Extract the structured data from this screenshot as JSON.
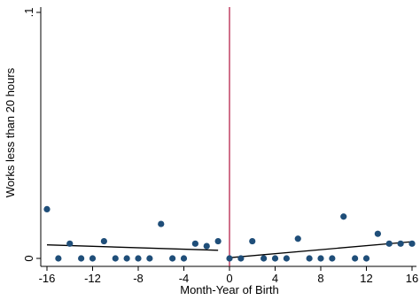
{
  "chart_data": {
    "type": "scatter",
    "title": "",
    "xlabel": "Month-Year of Birth",
    "ylabel": "Works less than 20 hours",
    "xlim": [
      -16,
      16
    ],
    "ylim": [
      0,
      0.1
    ],
    "xticks": [
      -16,
      -12,
      -8,
      -4,
      0,
      4,
      8,
      12,
      16
    ],
    "xtick_labels": [
      "-16",
      "-12",
      "-8",
      "-4",
      "0",
      "4",
      "8",
      "12",
      "16"
    ],
    "yticks": [
      0,
      0.1
    ],
    "ytick_labels": [
      "0",
      ".1"
    ],
    "grid": false,
    "legend": "none",
    "cutoff_x": 0,
    "colors": {
      "points": "#1f4e79",
      "fit": "#000000",
      "cutoff": "#b0123e",
      "axis": "#000000"
    },
    "points": [
      {
        "x": -16,
        "y": 0.02
      },
      {
        "x": -15,
        "y": 0.0
      },
      {
        "x": -14,
        "y": 0.006
      },
      {
        "x": -13,
        "y": 0.0
      },
      {
        "x": -12,
        "y": 0.0
      },
      {
        "x": -11,
        "y": 0.007
      },
      {
        "x": -10,
        "y": 0.0
      },
      {
        "x": -9,
        "y": 0.0
      },
      {
        "x": -8,
        "y": 0.0
      },
      {
        "x": -7,
        "y": 0.0
      },
      {
        "x": -6,
        "y": 0.014
      },
      {
        "x": -5,
        "y": 0.0
      },
      {
        "x": -4,
        "y": 0.0
      },
      {
        "x": -3,
        "y": 0.006
      },
      {
        "x": -2,
        "y": 0.005
      },
      {
        "x": -1,
        "y": 0.007
      },
      {
        "x": 0,
        "y": 0.0
      },
      {
        "x": 1,
        "y": 0.0
      },
      {
        "x": 2,
        "y": 0.007
      },
      {
        "x": 3,
        "y": 0.0
      },
      {
        "x": 4,
        "y": 0.0
      },
      {
        "x": 5,
        "y": 0.0
      },
      {
        "x": 6,
        "y": 0.008
      },
      {
        "x": 7,
        "y": 0.0
      },
      {
        "x": 8,
        "y": 0.0
      },
      {
        "x": 9,
        "y": 0.0
      },
      {
        "x": 10,
        "y": 0.017
      },
      {
        "x": 11,
        "y": 0.0
      },
      {
        "x": 12,
        "y": 0.0
      },
      {
        "x": 13,
        "y": 0.01
      },
      {
        "x": 14,
        "y": 0.006
      },
      {
        "x": 15,
        "y": 0.006
      },
      {
        "x": 16,
        "y": 0.006
      }
    ],
    "fit_lines": [
      {
        "x": [
          -16,
          -1
        ],
        "y": [
          0.0055,
          0.0033
        ]
      },
      {
        "x": [
          0,
          16
        ],
        "y": [
          0.0003,
          0.0068
        ]
      }
    ]
  }
}
